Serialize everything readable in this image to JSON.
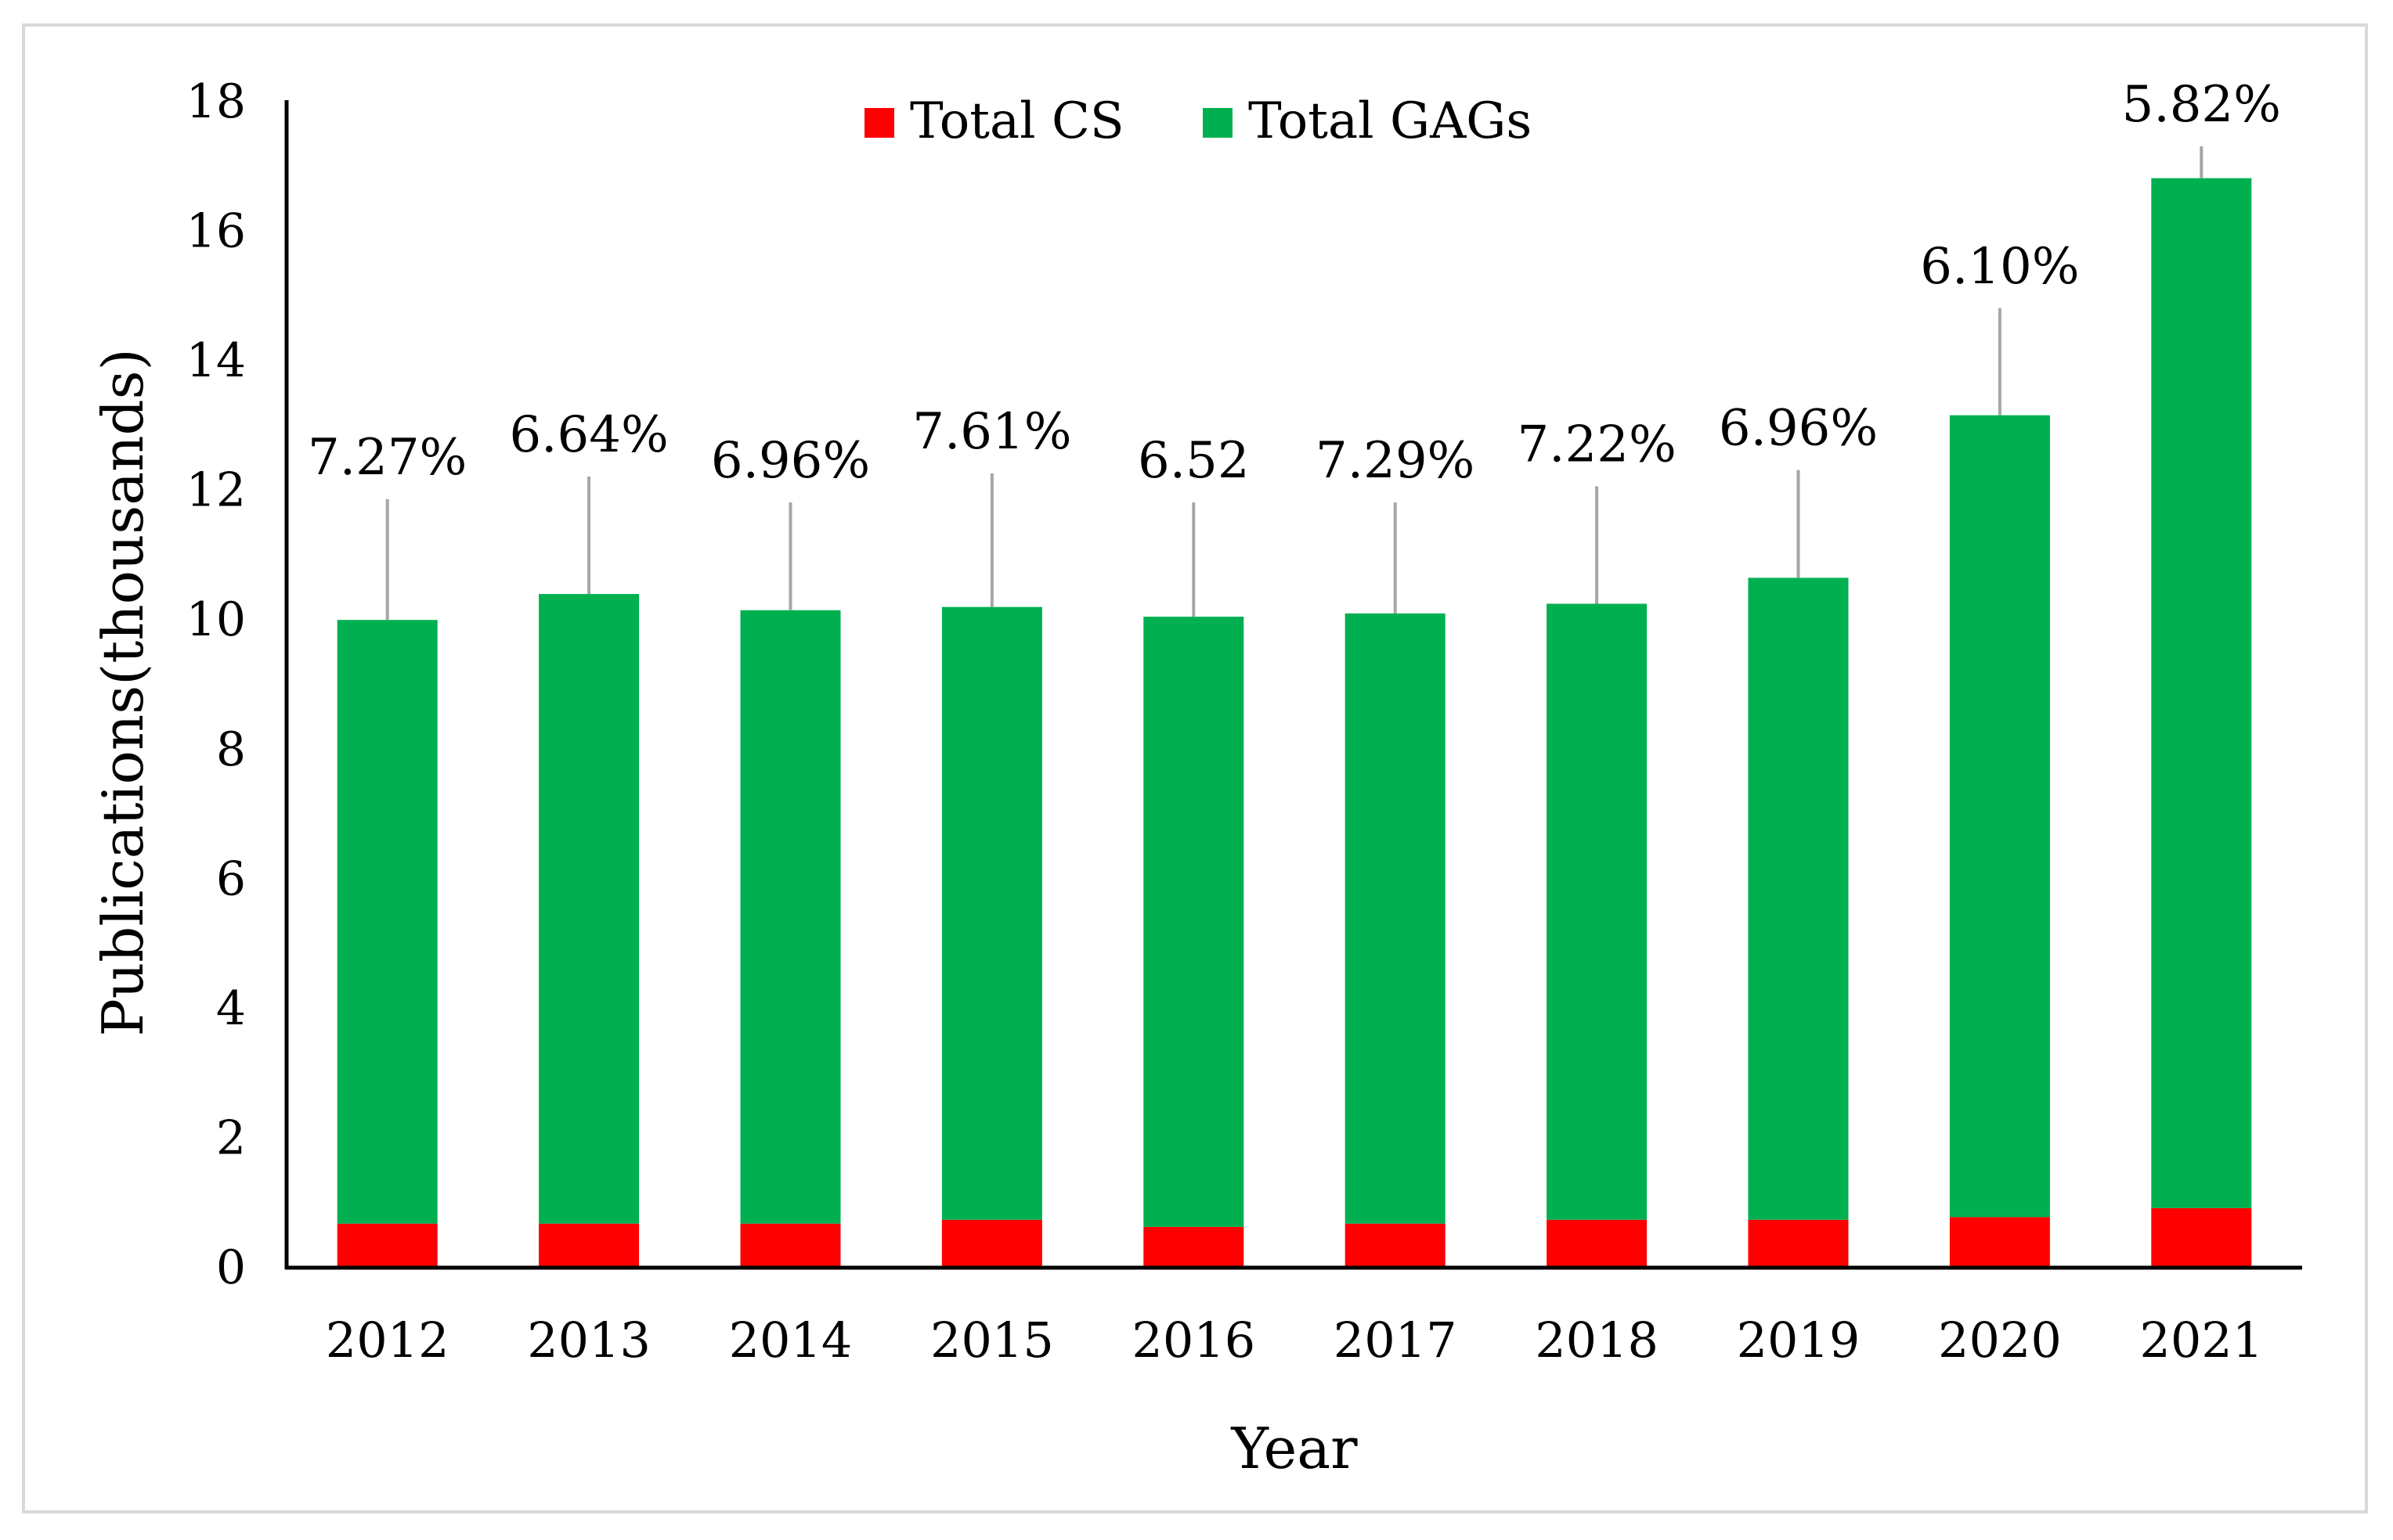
{
  "chart_data": {
    "type": "bar",
    "stacked": true,
    "title": "",
    "xlabel": "Year",
    "ylabel": "Publications(thousands)",
    "ylim": [
      0,
      18
    ],
    "yticks": [
      0,
      2,
      4,
      6,
      8,
      10,
      12,
      14,
      16,
      18
    ],
    "grid": false,
    "legend_position": "top-center",
    "categories": [
      "2012",
      "2013",
      "2014",
      "2015",
      "2016",
      "2017",
      "2018",
      "2019",
      "2020",
      "2021"
    ],
    "series": [
      {
        "name": "Total CS",
        "color": "#ff0000",
        "values": [
          0.68,
          0.68,
          0.68,
          0.74,
          0.63,
          0.68,
          0.74,
          0.74,
          0.78,
          0.92
        ]
      },
      {
        "name": "Total GAGs",
        "color": "#00b050",
        "values": [
          9.32,
          9.72,
          9.47,
          9.46,
          9.42,
          9.42,
          9.51,
          9.91,
          12.38,
          15.9
        ]
      }
    ],
    "data_labels": [
      "7.27%",
      "6.64%",
      "6.96%",
      "7.61%",
      "6.52",
      "7.29%",
      "7.22%",
      "6.96%",
      "6.10%",
      "5.82%"
    ],
    "label_values": [
      12.25,
      12.6,
      12.2,
      12.65,
      12.2,
      12.2,
      12.45,
      12.7,
      15.2,
      17.7
    ],
    "leader_line_color": "#a6a6a6"
  }
}
